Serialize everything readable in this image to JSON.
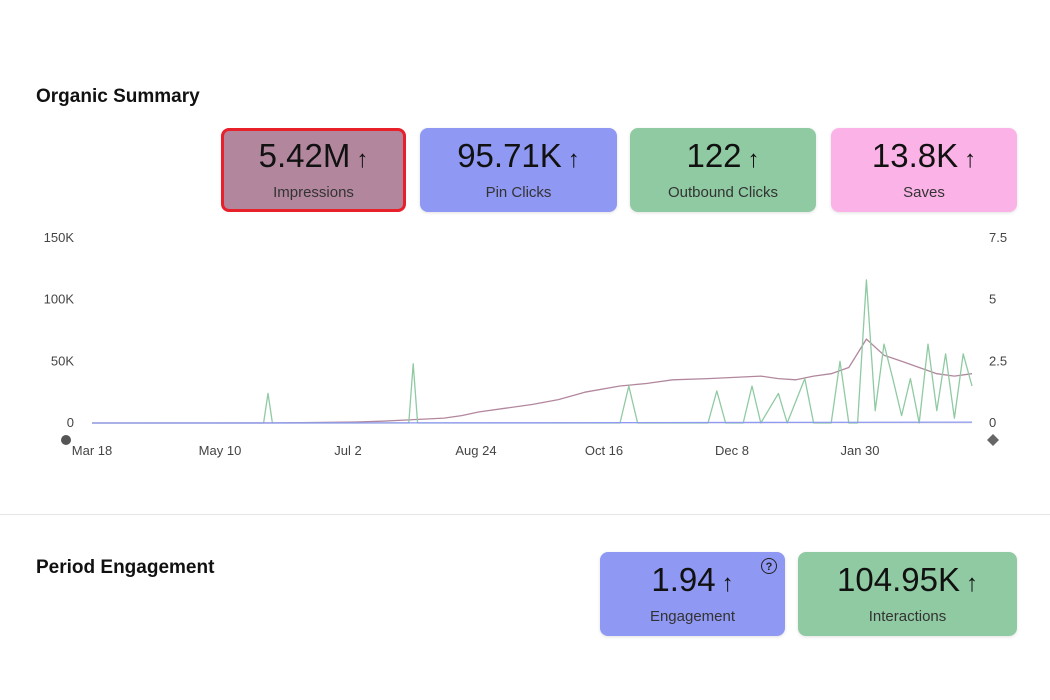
{
  "organic": {
    "title": "Organic Summary",
    "cards": [
      {
        "value": "5.42M",
        "arrow": "↑",
        "label": "Impressions",
        "color": "#b2879d"
      },
      {
        "value": "95.71K",
        "arrow": "↑",
        "label": "Pin Clicks",
        "color": "#8f98f2"
      },
      {
        "value": "122",
        "arrow": "↑",
        "label": "Outbound Clicks",
        "color": "#8fcaa2"
      },
      {
        "value": "13.8K",
        "arrow": "↑",
        "label": "Saves",
        "color": "#fbb3e7"
      }
    ]
  },
  "engagement": {
    "title": "Period Engagement",
    "help": "?",
    "cards": [
      {
        "value": "1.94",
        "arrow": "↑",
        "label": "Engagement",
        "color": "#8f98f2"
      },
      {
        "value": "104.95K",
        "arrow": "↑",
        "label": "Interactions",
        "color": "#8fcaa2"
      }
    ]
  },
  "chart_data": {
    "type": "line",
    "title": "",
    "x_labels": [
      "Mar 18",
      "May 10",
      "Jul 2",
      "Aug 24",
      "Oct 16",
      "Dec 8",
      "Jan 30"
    ],
    "y_left_ticks": [
      "150K",
      "100K",
      "50K",
      "0"
    ],
    "y_right_ticks": [
      "7.5",
      "5",
      "2.5",
      "0"
    ],
    "y_left_range": [
      0,
      150000
    ],
    "y_right_range": [
      0,
      7.5
    ],
    "series": [
      {
        "name": "Impressions",
        "axis": "left",
        "color": "#b2879d",
        "points": [
          [
            0,
            0
          ],
          [
            0.2,
            0
          ],
          [
            0.25,
            400
          ],
          [
            0.3,
            800
          ],
          [
            0.33,
            1500
          ],
          [
            0.36,
            2500
          ],
          [
            0.4,
            4000
          ],
          [
            0.42,
            6000
          ],
          [
            0.44,
            9000
          ],
          [
            0.47,
            12000
          ],
          [
            0.5,
            15000
          ],
          [
            0.53,
            19000
          ],
          [
            0.56,
            25000
          ],
          [
            0.6,
            30000
          ],
          [
            0.63,
            32000
          ],
          [
            0.66,
            35000
          ],
          [
            0.7,
            36000
          ],
          [
            0.73,
            37000
          ],
          [
            0.76,
            38000
          ],
          [
            0.78,
            36000
          ],
          [
            0.8,
            35000
          ],
          [
            0.82,
            38000
          ],
          [
            0.84,
            40000
          ],
          [
            0.86,
            45000
          ],
          [
            0.88,
            68000
          ],
          [
            0.9,
            55000
          ],
          [
            0.92,
            50000
          ],
          [
            0.94,
            45000
          ],
          [
            0.96,
            40000
          ],
          [
            0.98,
            38000
          ],
          [
            1,
            40000
          ]
        ]
      },
      {
        "name": "Outbound Clicks",
        "axis": "right",
        "color": "#8fcaa2",
        "points": [
          [
            0,
            0
          ],
          [
            0.195,
            0
          ],
          [
            0.2,
            1.2
          ],
          [
            0.205,
            0
          ],
          [
            0.36,
            0
          ],
          [
            0.365,
            2.4
          ],
          [
            0.37,
            0
          ],
          [
            0.6,
            0
          ],
          [
            0.61,
            1.5
          ],
          [
            0.62,
            0
          ],
          [
            0.7,
            0
          ],
          [
            0.71,
            1.3
          ],
          [
            0.72,
            0
          ],
          [
            0.74,
            0
          ],
          [
            0.75,
            1.5
          ],
          [
            0.76,
            0
          ],
          [
            0.78,
            1.2
          ],
          [
            0.79,
            0
          ],
          [
            0.81,
            1.8
          ],
          [
            0.82,
            0
          ],
          [
            0.84,
            0
          ],
          [
            0.85,
            2.5
          ],
          [
            0.86,
            0
          ],
          [
            0.87,
            0
          ],
          [
            0.88,
            5.8
          ],
          [
            0.89,
            0.5
          ],
          [
            0.9,
            3.2
          ],
          [
            0.91,
            1.8
          ],
          [
            0.92,
            0.3
          ],
          [
            0.93,
            1.8
          ],
          [
            0.94,
            0
          ],
          [
            0.95,
            3.2
          ],
          [
            0.96,
            0.5
          ],
          [
            0.97,
            2.8
          ],
          [
            0.98,
            0.2
          ],
          [
            0.99,
            2.8
          ],
          [
            1,
            1.5
          ]
        ]
      },
      {
        "name": "Pin Clicks",
        "axis": "left",
        "color": "#8f98f2",
        "points": [
          [
            0,
            0
          ],
          [
            0.5,
            200
          ],
          [
            0.8,
            500
          ],
          [
            1,
            700
          ]
        ]
      }
    ]
  }
}
